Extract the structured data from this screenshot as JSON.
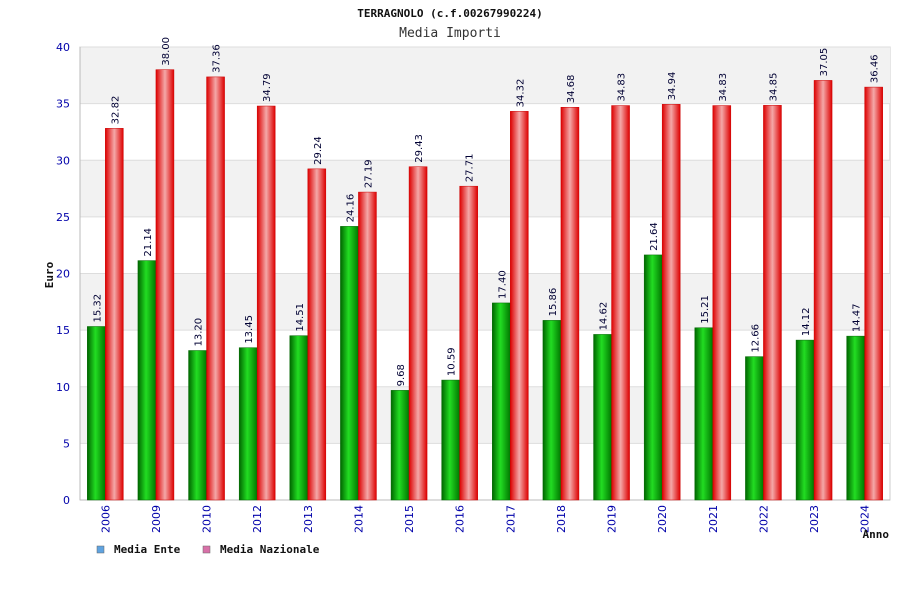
{
  "chart_data": {
    "type": "bar",
    "title": "TERRAGNOLO (c.f.00267990224)",
    "subtitle": "Media Importi",
    "xlabel": "Anno",
    "ylabel": "Euro",
    "ylim": [
      0,
      40
    ],
    "yticks": [
      0,
      5,
      10,
      15,
      20,
      25,
      30,
      35,
      40
    ],
    "grid": true,
    "legend_position": "bottom-left",
    "categories": [
      "2006",
      "2009",
      "2010",
      "2012",
      "2013",
      "2014",
      "2015",
      "2016",
      "2017",
      "2018",
      "2019",
      "2020",
      "2021",
      "2022",
      "2023",
      "2024"
    ],
    "series": [
      {
        "name": "Media Ente",
        "color": "#00aa00",
        "legend_color": "#5fa3e0",
        "values": [
          15.32,
          21.14,
          13.2,
          13.45,
          14.51,
          24.16,
          9.68,
          10.59,
          17.4,
          15.86,
          14.62,
          21.64,
          15.21,
          12.66,
          14.12,
          14.47
        ],
        "labels": [
          "15.32",
          "21.14",
          "13.20",
          "13.45",
          "14.51",
          "24.16",
          "9.68",
          "10.59",
          "17.40",
          "15.86",
          "14.62",
          "21.64",
          "15.21",
          "12.66",
          "14.12",
          "14.47"
        ]
      },
      {
        "name": "Media Nazionale",
        "color": "#ee1111",
        "legend_color": "#d870a8",
        "values": [
          32.82,
          38.0,
          37.36,
          34.79,
          29.24,
          27.19,
          29.43,
          27.71,
          34.32,
          34.68,
          34.83,
          34.94,
          34.83,
          34.85,
          37.05,
          36.46
        ],
        "labels": [
          "32.82",
          "38.00",
          "37.36",
          "34.79",
          "29.24",
          "27.19",
          "29.43",
          "27.71",
          "34.32",
          "34.68",
          "34.83",
          "34.94",
          "34.83",
          "34.85",
          "37.05",
          "36.46"
        ]
      }
    ]
  }
}
